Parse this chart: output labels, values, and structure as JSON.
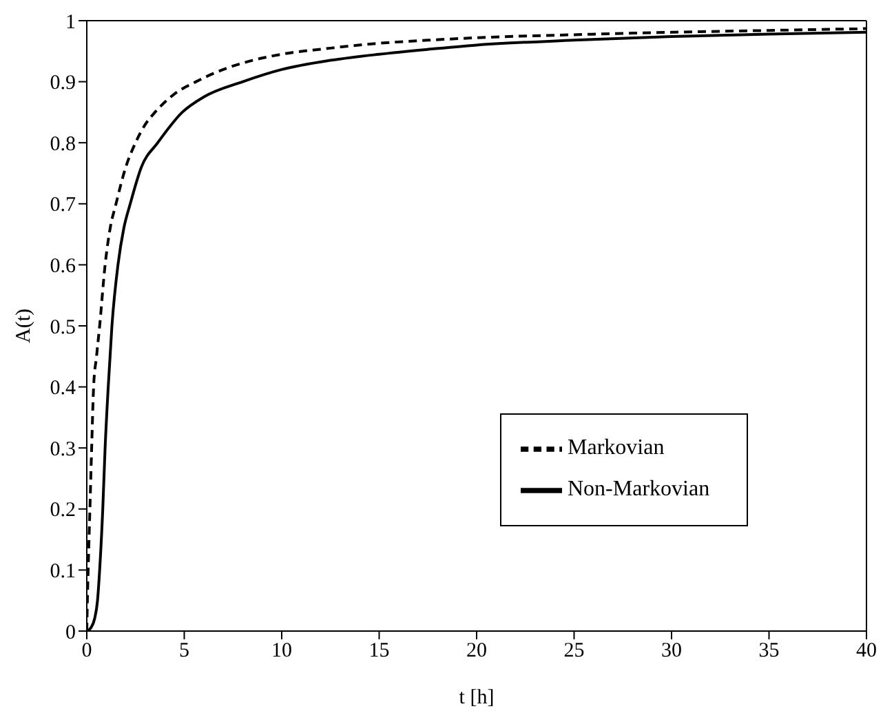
{
  "chart_data": {
    "type": "line",
    "xlabel": "t  [h]",
    "ylabel": "A(t)",
    "xlim": [
      0,
      40
    ],
    "xticks": [
      0,
      5,
      10,
      15,
      20,
      25,
      30,
      35,
      40
    ],
    "ylim": [
      0,
      1
    ],
    "yticks": [
      0,
      0.1,
      0.2,
      0.3,
      0.4,
      0.5,
      0.6,
      0.7,
      0.8,
      0.9,
      1
    ],
    "legend": "right",
    "marker": "none",
    "series": [
      {
        "name": "Markovian",
        "color": "#000000",
        "line_style": "dashed",
        "x": [
          0,
          0.03,
          0.07,
          0.16,
          0.25,
          0.35,
          0.5,
          0.66,
          0.94,
          1.2,
          1.5,
          2,
          2.5,
          3,
          3.5,
          4.5,
          5.6,
          7,
          8.5,
          10,
          12.5,
          15,
          17.5,
          20,
          25,
          30,
          35,
          40
        ],
        "values": [
          0,
          0.05,
          0.1,
          0.2,
          0.3,
          0.4,
          0.45,
          0.5,
          0.6,
          0.66,
          0.7,
          0.76,
          0.8,
          0.83,
          0.85,
          0.88,
          0.9,
          0.92,
          0.935,
          0.945,
          0.955,
          0.963,
          0.968,
          0.972,
          0.977,
          0.981,
          0.984,
          0.987
        ]
      },
      {
        "name": "Non-Markovian",
        "color": "#000000",
        "line_style": "solid",
        "x": [
          0,
          0.2,
          0.4,
          0.55,
          0.66,
          0.82,
          0.94,
          1.1,
          1.29,
          1.6,
          1.9,
          2.23,
          2.8,
          3.64,
          4.9,
          6,
          8,
          10,
          12.5,
          15,
          17.5,
          20,
          25,
          30,
          35,
          40
        ],
        "values": [
          0,
          0.005,
          0.02,
          0.05,
          0.1,
          0.2,
          0.3,
          0.4,
          0.5,
          0.6,
          0.66,
          0.7,
          0.76,
          0.8,
          0.85,
          0.875,
          0.9,
          0.92,
          0.935,
          0.945,
          0.953,
          0.96,
          0.968,
          0.974,
          0.978,
          0.981
        ]
      }
    ]
  }
}
